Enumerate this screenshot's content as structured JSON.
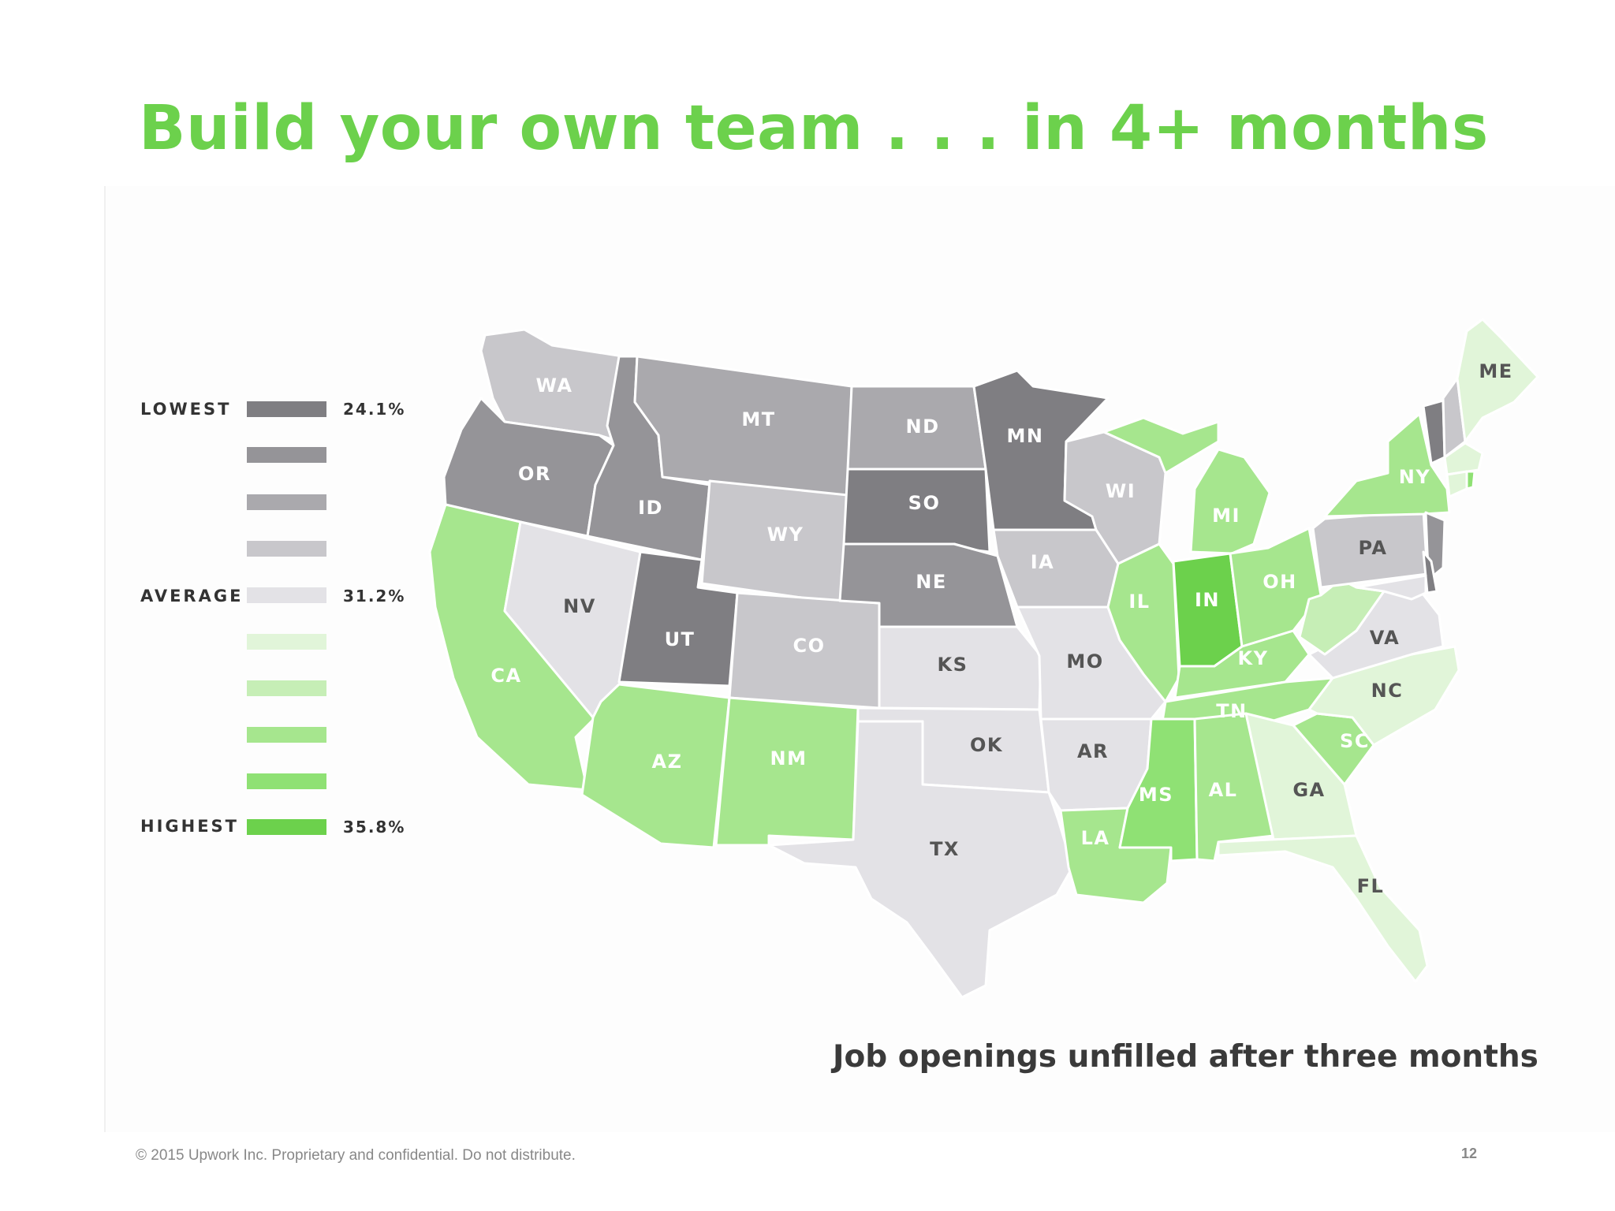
{
  "slide": {
    "title": "Build your own team . . . in 4+ months",
    "title_color": "#6cd14c",
    "caption": "Job openings unfilled after three months",
    "footer": "© 2015 Upwork Inc. Proprietary and confidential. Do not distribute.",
    "page_number": "12"
  },
  "legend": {
    "lowest_label": "LOWEST",
    "average_label": "AVERAGE",
    "highest_label": "HIGHEST",
    "lowest_value": "24.1%",
    "average_value": "31.2%",
    "highest_value": "35.8%",
    "swatches": [
      "#7f7e82",
      "#959498",
      "#aaa9ad",
      "#c8c7cb",
      "#e3e2e6",
      "#e1f5d9",
      "#c6eeb6",
      "#a6e68e",
      "#8fe174",
      "#6cd14c"
    ]
  },
  "states": [
    {
      "id": "WA",
      "label": "WA",
      "level": 3,
      "label_color": "#ffffff"
    },
    {
      "id": "OR",
      "label": "OR",
      "level": 1,
      "label_color": "#ffffff"
    },
    {
      "id": "CA",
      "label": "CA",
      "level": 7,
      "label_color": "#ffffff"
    },
    {
      "id": "ID",
      "label": "ID",
      "level": 1,
      "label_color": "#ffffff"
    },
    {
      "id": "NV",
      "label": "NV",
      "level": 4,
      "label_color": "#555555"
    },
    {
      "id": "MT",
      "label": "MT",
      "level": 2,
      "label_color": "#ffffff"
    },
    {
      "id": "WY",
      "label": "WY",
      "level": 3,
      "label_color": "#ffffff"
    },
    {
      "id": "UT",
      "label": "UT",
      "level": 0,
      "label_color": "#ffffff"
    },
    {
      "id": "CO",
      "label": "CO",
      "level": 3,
      "label_color": "#ffffff"
    },
    {
      "id": "AZ",
      "label": "AZ",
      "level": 7,
      "label_color": "#ffffff"
    },
    {
      "id": "NM",
      "label": "NM",
      "level": 7,
      "label_color": "#ffffff"
    },
    {
      "id": "ND",
      "label": "ND",
      "level": 2,
      "label_color": "#ffffff"
    },
    {
      "id": "SD",
      "label": "SO",
      "level": 0,
      "label_color": "#ffffff"
    },
    {
      "id": "NE",
      "label": "NE",
      "level": 1,
      "label_color": "#ffffff"
    },
    {
      "id": "KS",
      "label": "KS",
      "level": 4,
      "label_color": "#555555"
    },
    {
      "id": "OK",
      "label": "OK",
      "level": 4,
      "label_color": "#555555"
    },
    {
      "id": "TX",
      "label": "TX",
      "level": 4,
      "label_color": "#555555"
    },
    {
      "id": "MN",
      "label": "MN",
      "level": 0,
      "label_color": "#ffffff"
    },
    {
      "id": "IA",
      "label": "IA",
      "level": 3,
      "label_color": "#ffffff"
    },
    {
      "id": "MO",
      "label": "MO",
      "level": 4,
      "label_color": "#555555"
    },
    {
      "id": "AR",
      "label": "AR",
      "level": 4,
      "label_color": "#555555"
    },
    {
      "id": "LA",
      "label": "LA",
      "level": 7,
      "label_color": "#ffffff"
    },
    {
      "id": "WI",
      "label": "WI",
      "level": 3,
      "label_color": "#ffffff"
    },
    {
      "id": "IL",
      "label": "IL",
      "level": 7,
      "label_color": "#ffffff"
    },
    {
      "id": "IN",
      "label": "IN",
      "level": 9,
      "label_color": "#ffffff"
    },
    {
      "id": "MI",
      "label": "MI",
      "level": 7,
      "label_color": "#ffffff"
    },
    {
      "id": "UP",
      "label": "",
      "level": 7,
      "label_color": "#ffffff"
    },
    {
      "id": "OH",
      "label": "OH",
      "level": 7,
      "label_color": "#ffffff"
    },
    {
      "id": "KY",
      "label": "KY",
      "level": 7,
      "label_color": "#ffffff"
    },
    {
      "id": "TN",
      "label": "TN",
      "level": 7,
      "label_color": "#ffffff"
    },
    {
      "id": "MS",
      "label": "MS",
      "level": 8,
      "label_color": "#ffffff"
    },
    {
      "id": "AL",
      "label": "AL",
      "level": 7,
      "label_color": "#ffffff"
    },
    {
      "id": "GA",
      "label": "GA",
      "level": 5,
      "label_color": "#555555"
    },
    {
      "id": "FL",
      "label": "FL",
      "level": 5,
      "label_color": "#555555"
    },
    {
      "id": "SC",
      "label": "SC",
      "level": 7,
      "label_color": "#ffffff"
    },
    {
      "id": "NC",
      "label": "NC",
      "level": 5,
      "label_color": "#555555"
    },
    {
      "id": "VA",
      "label": "VA",
      "level": 4,
      "label_color": "#555555"
    },
    {
      "id": "WV",
      "label": "",
      "level": 6,
      "label_color": "#ffffff"
    },
    {
      "id": "PA",
      "label": "PA",
      "level": 3,
      "label_color": "#555555"
    },
    {
      "id": "NY",
      "label": "NY",
      "level": 7,
      "label_color": "#ffffff"
    },
    {
      "id": "NJ",
      "label": "",
      "level": 1,
      "label_color": "#ffffff"
    },
    {
      "id": "DE",
      "label": "",
      "level": 0,
      "label_color": "#ffffff"
    },
    {
      "id": "MD",
      "label": "",
      "level": 4,
      "label_color": "#ffffff"
    },
    {
      "id": "VT",
      "label": "",
      "level": 0,
      "label_color": "#ffffff"
    },
    {
      "id": "NH",
      "label": "",
      "level": 3,
      "label_color": "#ffffff"
    },
    {
      "id": "MA",
      "label": "",
      "level": 5,
      "label_color": "#ffffff"
    },
    {
      "id": "CT",
      "label": "",
      "level": 5,
      "label_color": "#ffffff"
    },
    {
      "id": "RI",
      "label": "",
      "level": 8,
      "label_color": "#ffffff"
    },
    {
      "id": "ME",
      "label": "ME",
      "level": 5,
      "label_color": "#555555"
    }
  ]
}
